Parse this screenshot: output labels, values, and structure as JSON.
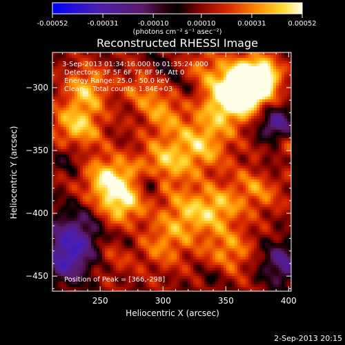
{
  "colorbar": {
    "tick_labels": [
      "-0.00052",
      "-0.00031",
      "-0.00010",
      "0.00010",
      "0.00031",
      "0.00052"
    ],
    "tick_values": [
      -0.00052,
      -0.00031,
      -0.0001,
      0.0001,
      0.00031,
      0.00052
    ],
    "unit_label": "(photons cm⁻² s⁻¹ asec⁻²)",
    "range": [
      -0.00052,
      0.00052
    ]
  },
  "chart_data": {
    "type": "heatmap",
    "title": "Reconstructed RHESSI Image",
    "xlabel": "Heliocentric X (arcsec)",
    "ylabel": "Heliocentric Y (arcsec)",
    "xlim": [
      212,
      402
    ],
    "ylim": [
      -462,
      -272
    ],
    "xticks": [
      250,
      300,
      350,
      400
    ],
    "yticks": [
      -300,
      -350,
      -400,
      -450
    ],
    "xtick_labels": [
      "250",
      "300",
      "350",
      "400"
    ],
    "ytick_labels": [
      "-300",
      "-350",
      "-400",
      "-450"
    ],
    "colormap": "blue-purple-red-yellow-white",
    "peak": {
      "x": 366,
      "y": -298
    },
    "annotations": {
      "time_range": "3-Sep-2013 01:34:16.000 to 01:35:24.000",
      "detectors": "Detectors: 3F 5F 6F 7F 8F 9F, Att 0",
      "energy": "Energy Range: 25.0 - 50.0 keV",
      "method_counts": "Clean    Total counts: 1.84E+03",
      "peak_text": "Position of Peak = [366,-298]"
    }
  },
  "footer": {
    "timestamp": "2-Sep-2013 20:15"
  }
}
